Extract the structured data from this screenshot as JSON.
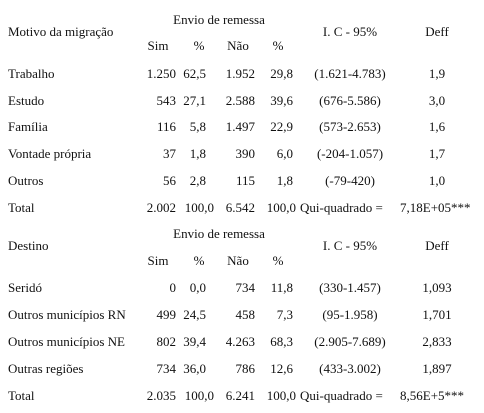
{
  "table1": {
    "header": {
      "row_label": "Motivo da migração",
      "group": "Envio de remessa",
      "sim": "Sim",
      "pct1": "%",
      "nao": "Não",
      "pct2": "%",
      "ic": "I. C - 95%",
      "deff": "Deff"
    },
    "rows": [
      {
        "label": "Trabalho",
        "sim": "1.250",
        "pct1": "62,5",
        "nao": "1.952",
        "pct2": "29,8",
        "ic": "(1.621-4.783)",
        "deff": "1,9"
      },
      {
        "label": "Estudo",
        "sim": "543",
        "pct1": "27,1",
        "nao": "2.588",
        "pct2": "39,6",
        "ic": "(676-5.586)",
        "deff": "3,0"
      },
      {
        "label": "Família",
        "sim": "116",
        "pct1": "5,8",
        "nao": "1.497",
        "pct2": "22,9",
        "ic": "(573-2.653)",
        "deff": "1,6"
      },
      {
        "label": "Vontade própria",
        "sim": "37",
        "pct1": "1,8",
        "nao": "390",
        "pct2": "6,0",
        "ic": "(-204-1.057)",
        "deff": "1,7"
      },
      {
        "label": "Outros",
        "sim": "56",
        "pct1": "2,8",
        "nao": "115",
        "pct2": "1,8",
        "ic": "(-79-420)",
        "deff": "1,0"
      }
    ],
    "total": {
      "label": "Total",
      "sim": "2.002",
      "pct1": "100,0",
      "nao": "6.542",
      "pct2": "100,0",
      "chi_label": "Qui-quadrado =",
      "chi_value": "7,18E+05***"
    }
  },
  "table2": {
    "header": {
      "row_label": "Destino",
      "group": "Envio de remessa",
      "sim": "Sim",
      "pct1": "%",
      "nao": "Não",
      "pct2": "%",
      "ic": "I. C - 95%",
      "deff": "Deff"
    },
    "rows": [
      {
        "label": "Seridó",
        "sim": "0",
        "pct1": "0,0",
        "nao": "734",
        "pct2": "11,8",
        "ic": "(330-1.457)",
        "deff": "1,093"
      },
      {
        "label": "Outros municípios RN",
        "sim": "499",
        "pct1": "24,5",
        "nao": "458",
        "pct2": "7,3",
        "ic": "(95-1.958)",
        "deff": "1,701"
      },
      {
        "label": "Outros municípios NE",
        "sim": "802",
        "pct1": "39,4",
        "nao": "4.263",
        "pct2": "68,3",
        "ic": "(2.905-7.689)",
        "deff": "2,833"
      },
      {
        "label": "Outras regiões",
        "sim": "734",
        "pct1": "36,0",
        "nao": "786",
        "pct2": "12,6",
        "ic": "(433-3.002)",
        "deff": "1,897"
      }
    ],
    "total": {
      "label": "Total",
      "sim": "2.035",
      "pct1": "100,0",
      "nao": "6.241",
      "pct2": "100,0",
      "chi_label": "Qui-quadrado =",
      "chi_value": "8,56E+5***"
    }
  }
}
